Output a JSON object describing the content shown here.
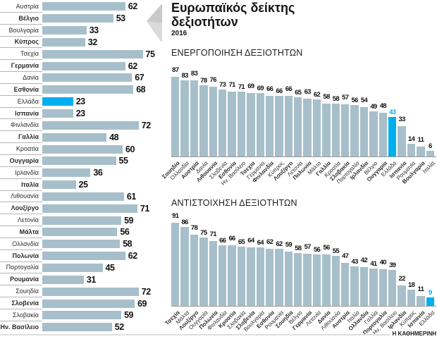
{
  "title": {
    "line1": "Ευρωπαϊκός δείκτης",
    "line2": "δεξιοτήτων",
    "year": "2016"
  },
  "credit": "Η ΚΑΘΗΜΕΡΙΝΗ",
  "colors": {
    "bar": "#a7bfca",
    "highlight": "#00aeef"
  },
  "chart_data": [
    {
      "type": "bar",
      "orientation": "horizontal",
      "title": "Ευρωπαϊκός δείκτης δεξιοτήτων 2016",
      "highlight_category": "Ελλάδα",
      "xlim": [
        0,
        100
      ],
      "categories": [
        "Αυστρία",
        "Βέλγιο",
        "Βουλγαρία",
        "Κύπρος",
        "Τσεχία",
        "Γερμανία",
        "Δανία",
        "Εσθονία",
        "Ελλάδα",
        "Ισπανία",
        "Φινλανδία",
        "Γαλλία",
        "Κροατία",
        "Ουγγαρία",
        "Ιρλανδία",
        "Ιταλία",
        "Λιθουανία",
        "Λουξ/ργο",
        "Λετονία",
        "Μάλτα",
        "Ολλανδία",
        "Πολωνία",
        "Πορτογαλία",
        "Ρουμανία",
        "Σουηδία",
        "Σλοβενία",
        "Σλοβακία",
        "Ην. Βασίλειο"
      ],
      "values": [
        62,
        53,
        33,
        32,
        75,
        62,
        67,
        68,
        23,
        23,
        72,
        48,
        60,
        55,
        36,
        25,
        61,
        71,
        59,
        56,
        58,
        62,
        45,
        31,
        72,
        69,
        59,
        52
      ]
    },
    {
      "type": "bar",
      "orientation": "vertical",
      "title": "ΕΝΕΡΓΟΠΟΙΗΣΗ ΔΕΞΙΟΤΗΤΩΝ",
      "highlight_category": "Ελλάδα",
      "ylim": [
        0,
        100
      ],
      "categories": [
        "Σουηδία",
        "Ολλανδία",
        "Αυστρία",
        "Δανία",
        "Λιθουανία",
        "Σλοβενία",
        "Εσθονία",
        "Ην. Βασίλειο",
        "Τσεχία",
        "Γερμανία",
        "Φινλανδία",
        "Κύπρος",
        "Λουξ/ργο",
        "Λετονία",
        "Πολωνία",
        "Μάλτα",
        "Γαλλία",
        "Κροατία",
        "Σλοβακία",
        "Πορτογαλία",
        "Ιρλανδία",
        "Βέλγιο",
        "Ουγγαρία",
        "Ελλάδα",
        "Ισπανία",
        "Ρουμανία",
        "Βουλγαρία",
        "Ιταλία"
      ],
      "values": [
        87,
        83,
        83,
        78,
        76,
        73,
        71,
        71,
        69,
        69,
        66,
        66,
        66,
        65,
        63,
        62,
        58,
        58,
        57,
        56,
        54,
        49,
        48,
        43,
        33,
        14,
        11,
        6
      ]
    },
    {
      "type": "bar",
      "orientation": "vertical",
      "title": "ΑΝΤΙΣΤΟΙΧΗΣΗ ΔΕΞΙΟΤΗΤΩΝ",
      "highlight_category": "Ελλάδα",
      "ylim": [
        0,
        100
      ],
      "categories": [
        "Τσεχία",
        "Μάλτα",
        "Λουξ/ργο",
        "Ουγγαρία",
        "Πολωνία",
        "Φινλανδία",
        "Κροατία",
        "Σλοβακία",
        "Σλοβενία",
        "Βουλγαρία",
        "Εσθονία",
        "Ρουμανία",
        "Σουηδία",
        "Βέλγιο",
        "Γερμανία",
        "Λετονία",
        "Δανία",
        "Λιθουανία",
        "Αυστρία",
        "Ιταλία",
        "Ολλανδία",
        "Γαλλία",
        "Πορτογαλία",
        "Ην. Βασίλειο",
        "Ιρλανδία",
        "Κύπρος",
        "Ισπανία",
        "Ελλάδα"
      ],
      "values": [
        91,
        86,
        78,
        75,
        71,
        66,
        66,
        65,
        64,
        64,
        62,
        62,
        59,
        58,
        57,
        56,
        56,
        55,
        47,
        43,
        42,
        41,
        40,
        39,
        22,
        18,
        11,
        9
      ]
    }
  ]
}
